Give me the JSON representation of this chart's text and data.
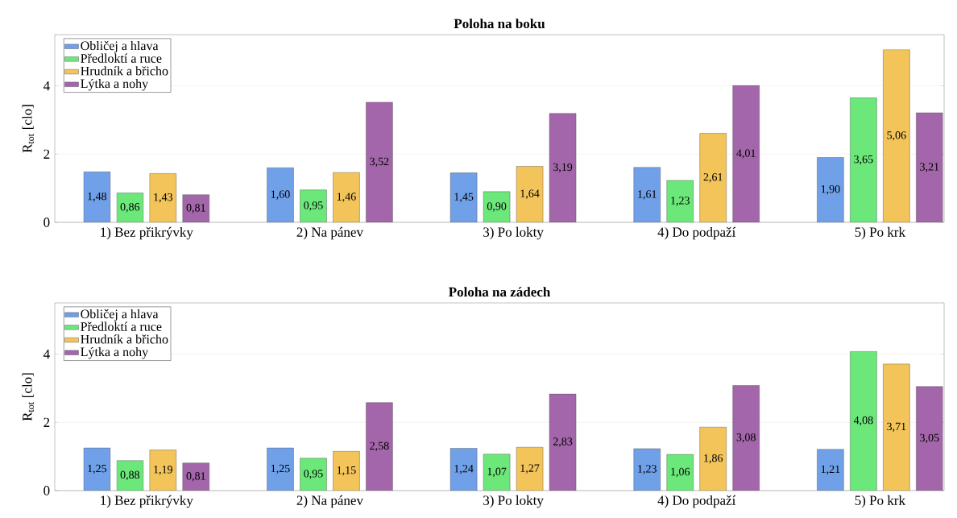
{
  "chart_data": [
    {
      "type": "bar",
      "title": "Poloha na boku",
      "ylabel": "R$_{tot}$ [clo]",
      "categories": [
        "1) Bez přikrývky",
        "2) Na pánev",
        "3) Po lokty",
        "4) Do podpaží",
        "5) Po krk"
      ],
      "ylim": [
        0,
        5.5
      ],
      "yticks": [
        0,
        2,
        4
      ],
      "grid": "y",
      "legend": "top left",
      "series": [
        {
          "name": "Obličej a hlava",
          "color": "#6fa0e8",
          "values": [
            1.48,
            1.6,
            1.45,
            1.61,
            1.9
          ],
          "value_labels": [
            "1,48",
            "1,60",
            "1,45",
            "1,61",
            "1,90"
          ]
        },
        {
          "name": "Předloktí a ruce",
          "color": "#6ce87a",
          "values": [
            0.86,
            0.95,
            0.9,
            1.23,
            3.65
          ],
          "value_labels": [
            "0,86",
            "0,95",
            "0,90",
            "1,23",
            "3,65"
          ]
        },
        {
          "name": "Hrudník a břicho",
          "color": "#f2c45a",
          "values": [
            1.43,
            1.46,
            1.64,
            2.61,
            5.06
          ],
          "value_labels": [
            "1,43",
            "1,46",
            "1,64",
            "2,61",
            "5,06"
          ]
        },
        {
          "name": "Lýtka a nohy",
          "color": "#a466aa",
          "values": [
            0.81,
            3.52,
            3.19,
            4.01,
            3.21
          ],
          "value_labels": [
            "0,81",
            "3,52",
            "3,19",
            "4,01",
            "3,21"
          ]
        }
      ]
    },
    {
      "type": "bar",
      "title": "Poloha na zádech",
      "ylabel": "R$_{tot}$ [clo]",
      "categories": [
        "1) Bez přikrývky",
        "2) Na pánev",
        "3) Po lokty",
        "4) Do podpaží",
        "5) Po krk"
      ],
      "ylim": [
        0,
        5.5
      ],
      "yticks": [
        0,
        2,
        4
      ],
      "grid": "y",
      "legend": "top left",
      "series": [
        {
          "name": "Obličej a hlava",
          "color": "#6fa0e8",
          "values": [
            1.25,
            1.25,
            1.24,
            1.23,
            1.21
          ],
          "value_labels": [
            "1,25",
            "1,25",
            "1,24",
            "1,23",
            "1,21"
          ]
        },
        {
          "name": "Předloktí a ruce",
          "color": "#6ce87a",
          "values": [
            0.88,
            0.95,
            1.07,
            1.06,
            4.08
          ],
          "value_labels": [
            "0,88",
            "0,95",
            "1,07",
            "1,06",
            "4,08"
          ]
        },
        {
          "name": "Hrudník a břicho",
          "color": "#f2c45a",
          "values": [
            1.19,
            1.15,
            1.27,
            1.86,
            3.71
          ],
          "value_labels": [
            "1,19",
            "1,15",
            "1,27",
            "1,86",
            "3,71"
          ]
        },
        {
          "name": "Lýtka a nohy",
          "color": "#a466aa",
          "values": [
            0.81,
            2.58,
            2.83,
            3.08,
            3.05
          ],
          "value_labels": [
            "0,81",
            "2,58",
            "2,83",
            "3,08",
            "3,05"
          ]
        }
      ]
    }
  ]
}
